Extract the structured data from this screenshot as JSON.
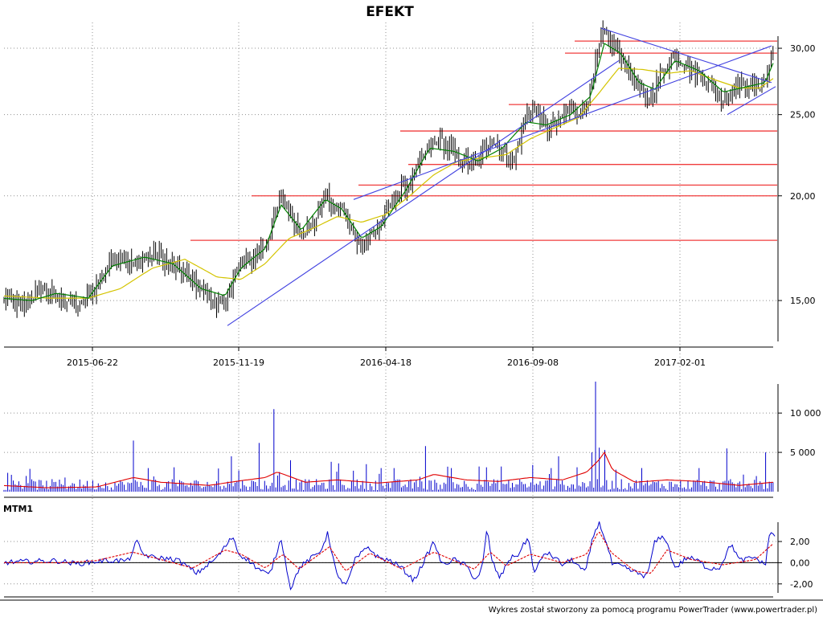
{
  "title": "EFEKT",
  "footer": "Wykres został stworzony za pomocą programu PowerTrader (www.powertrader.pl)",
  "colors": {
    "candle": "#000000",
    "ma_short": "#008000",
    "ma_long": "#d4c400",
    "channel": "#4040e0",
    "hline": "#f03c3c",
    "volume": "#0000cc",
    "volume_ma": "#e00000",
    "mtm": "#0000cc",
    "mtm_signal": "#e00000"
  },
  "chart_data": [
    {
      "type": "candlestick",
      "name": "price",
      "xticks": [
        "2015-06-22",
        "2015-11-19",
        "2016-04-18",
        "2016-09-08",
        "2017-02-01"
      ],
      "yticks": [
        "15,00",
        "20,00",
        "25,00",
        "30,00"
      ],
      "ylim": [
        13.2,
        32.2
      ],
      "yscale": "log",
      "close_anchors": [
        [
          0,
          15.1
        ],
        [
          12,
          15.0
        ],
        [
          25,
          14.8
        ],
        [
          35,
          14.9
        ],
        [
          50,
          15.6
        ],
        [
          60,
          15.3
        ],
        [
          70,
          15.2
        ],
        [
          85,
          15.0
        ],
        [
          100,
          14.8
        ],
        [
          115,
          15.3
        ],
        [
          125,
          16.0
        ],
        [
          140,
          16.8
        ],
        [
          150,
          17.0
        ],
        [
          165,
          16.5
        ],
        [
          180,
          16.9
        ],
        [
          195,
          17.0
        ],
        [
          215,
          16.5
        ],
        [
          235,
          16.0
        ],
        [
          250,
          15.5
        ],
        [
          265,
          15.0
        ],
        [
          280,
          14.8
        ],
        [
          290,
          16.0
        ],
        [
          300,
          16.7
        ],
        [
          315,
          16.9
        ],
        [
          330,
          17.5
        ],
        [
          340,
          18.5
        ],
        [
          350,
          20.0
        ],
        [
          362,
          19.0
        ],
        [
          375,
          18.0
        ],
        [
          392,
          18.6
        ],
        [
          405,
          20.2
        ],
        [
          415,
          19.2
        ],
        [
          425,
          19.5
        ],
        [
          438,
          18.0
        ],
        [
          450,
          17.5
        ],
        [
          462,
          18.0
        ],
        [
          475,
          18.5
        ],
        [
          490,
          20.0
        ],
        [
          505,
          20.5
        ],
        [
          520,
          21.5
        ],
        [
          535,
          23.0
        ],
        [
          550,
          23.2
        ],
        [
          565,
          22.5
        ],
        [
          580,
          22.0
        ],
        [
          595,
          21.8
        ],
        [
          610,
          23.5
        ],
        [
          625,
          22.5
        ],
        [
          640,
          22.0
        ],
        [
          655,
          25.0
        ],
        [
          665,
          25.5
        ],
        [
          680,
          24.0
        ],
        [
          695,
          24.5
        ],
        [
          710,
          25.5
        ],
        [
          725,
          25.0
        ],
        [
          735,
          26.5
        ],
        [
          745,
          30.0
        ],
        [
          752,
          31.5
        ],
        [
          760,
          30.5
        ],
        [
          772,
          29.5
        ],
        [
          785,
          28.0
        ],
        [
          795,
          27.0
        ],
        [
          805,
          25.8
        ],
        [
          815,
          27.0
        ],
        [
          828,
          28.5
        ],
        [
          840,
          29.5
        ],
        [
          855,
          28.5
        ],
        [
          870,
          28.0
        ],
        [
          885,
          27.0
        ],
        [
          900,
          26.2
        ],
        [
          915,
          27.0
        ],
        [
          930,
          27.2
        ],
        [
          945,
          27.0
        ],
        [
          952,
          27.5
        ],
        [
          962,
          29.5
        ]
      ],
      "ma_short_anchors": [
        [
          0,
          15.1
        ],
        [
          40,
          15.0
        ],
        [
          70,
          15.3
        ],
        [
          110,
          15.1
        ],
        [
          140,
          16.5
        ],
        [
          180,
          16.9
        ],
        [
          215,
          16.6
        ],
        [
          250,
          15.5
        ],
        [
          280,
          15.2
        ],
        [
          300,
          16.4
        ],
        [
          330,
          17.3
        ],
        [
          350,
          19.5
        ],
        [
          375,
          18.2
        ],
        [
          405,
          19.8
        ],
        [
          425,
          19.3
        ],
        [
          450,
          17.8
        ],
        [
          475,
          18.4
        ],
        [
          505,
          20.3
        ],
        [
          535,
          22.8
        ],
        [
          565,
          22.6
        ],
        [
          595,
          22.0
        ],
        [
          625,
          22.8
        ],
        [
          655,
          24.5
        ],
        [
          680,
          24.3
        ],
        [
          710,
          25.0
        ],
        [
          735,
          26.3
        ],
        [
          752,
          30.4
        ],
        [
          772,
          29.6
        ],
        [
          795,
          27.3
        ],
        [
          815,
          26.8
        ],
        [
          840,
          29.0
        ],
        [
          870,
          28.2
        ],
        [
          900,
          26.6
        ],
        [
          930,
          27.0
        ],
        [
          952,
          27.3
        ],
        [
          962,
          28.8
        ]
      ],
      "ma_long_anchors": [
        [
          0,
          15.2
        ],
        [
          60,
          15.1
        ],
        [
          110,
          15.1
        ],
        [
          150,
          15.5
        ],
        [
          190,
          16.4
        ],
        [
          230,
          16.8
        ],
        [
          270,
          16.0
        ],
        [
          300,
          15.9
        ],
        [
          330,
          16.6
        ],
        [
          360,
          17.8
        ],
        [
          390,
          18.3
        ],
        [
          420,
          18.9
        ],
        [
          450,
          18.6
        ],
        [
          480,
          19.0
        ],
        [
          510,
          20.0
        ],
        [
          540,
          21.2
        ],
        [
          570,
          22.0
        ],
        [
          600,
          22.2
        ],
        [
          630,
          22.4
        ],
        [
          660,
          23.4
        ],
        [
          690,
          24.1
        ],
        [
          720,
          24.8
        ],
        [
          745,
          26.5
        ],
        [
          770,
          28.4
        ],
        [
          800,
          28.3
        ],
        [
          830,
          28.0
        ],
        [
          860,
          28.2
        ],
        [
          890,
          27.5
        ],
        [
          920,
          26.9
        ],
        [
          945,
          26.9
        ],
        [
          962,
          27.6
        ]
      ],
      "channel_lines": [
        [
          [
            283,
            14.0
          ],
          [
            770,
            29.0
          ]
        ],
        [
          [
            440,
            19.8
          ],
          [
            960,
            30.2
          ]
        ],
        [
          [
            748,
            31.7
          ],
          [
            960,
            27.3
          ]
        ],
        [
          [
            905,
            25.0
          ],
          [
            965,
            27.0
          ]
        ]
      ],
      "horizontal_levels": [
        {
          "x0": 715,
          "y": 30.6
        },
        {
          "x0": 703,
          "y": 29.6
        },
        {
          "x0": 633,
          "y": 25.7
        },
        {
          "x0": 498,
          "y": 23.9
        },
        {
          "x0": 508,
          "y": 21.8
        },
        {
          "x0": 446,
          "y": 20.6
        },
        {
          "x0": 313,
          "y": 20.0
        },
        {
          "x0": 237,
          "y": 17.7
        }
      ]
    },
    {
      "type": "bar",
      "name": "volume",
      "yticks": [
        "5 000",
        "10 000"
      ],
      "ylim": [
        0,
        14000
      ],
      "spikes": [
        [
          32,
          2000
        ],
        [
          80,
          1800
        ],
        [
          166,
          6500
        ],
        [
          183,
          3000
        ],
        [
          217,
          3100
        ],
        [
          287,
          4500
        ],
        [
          297,
          2700
        ],
        [
          323,
          6200
        ],
        [
          340,
          10500
        ],
        [
          362,
          4000
        ],
        [
          412,
          3800
        ],
        [
          420,
          3600
        ],
        [
          455,
          3500
        ],
        [
          474,
          3000
        ],
        [
          490,
          3000
        ],
        [
          530,
          5800
        ],
        [
          561,
          3000
        ],
        [
          595,
          3200
        ],
        [
          605,
          3100
        ],
        [
          623,
          3200
        ],
        [
          663,
          3400
        ],
        [
          685,
          3000
        ],
        [
          694,
          4500
        ],
        [
          718,
          3100
        ],
        [
          735,
          5000
        ],
        [
          740,
          14000
        ],
        [
          746,
          5600
        ],
        [
          752,
          5300
        ],
        [
          767,
          2800
        ],
        [
          798,
          3000
        ],
        [
          870,
          3000
        ],
        [
          905,
          5500
        ],
        [
          953,
          5000
        ]
      ],
      "ma_anchors": [
        [
          0,
          800
        ],
        [
          60,
          500
        ],
        [
          120,
          600
        ],
        [
          166,
          1800
        ],
        [
          200,
          1200
        ],
        [
          260,
          800
        ],
        [
          300,
          1400
        ],
        [
          330,
          1800
        ],
        [
          345,
          2500
        ],
        [
          380,
          1200
        ],
        [
          420,
          1500
        ],
        [
          470,
          1100
        ],
        [
          520,
          1500
        ],
        [
          540,
          2200
        ],
        [
          580,
          1500
        ],
        [
          620,
          1300
        ],
        [
          660,
          1800
        ],
        [
          700,
          1500
        ],
        [
          730,
          2500
        ],
        [
          745,
          4000
        ],
        [
          752,
          5000
        ],
        [
          762,
          2800
        ],
        [
          790,
          1200
        ],
        [
          830,
          1500
        ],
        [
          870,
          1300
        ],
        [
          920,
          800
        ],
        [
          962,
          1200
        ]
      ]
    },
    {
      "type": "line",
      "name": "MTM1",
      "title": "MTM1",
      "yticks": [
        "-2,00",
        "0,00",
        "2,00"
      ],
      "ylim": [
        -3.0,
        4.2
      ],
      "mtm_anchors": [
        [
          0,
          0.0
        ],
        [
          30,
          0.1
        ],
        [
          70,
          0.2
        ],
        [
          95,
          -0.1
        ],
        [
          130,
          0.2
        ],
        [
          160,
          0.2
        ],
        [
          170,
          2.0
        ],
        [
          178,
          0.8
        ],
        [
          190,
          0.5
        ],
        [
          220,
          0.3
        ],
        [
          245,
          -1.0
        ],
        [
          270,
          0.5
        ],
        [
          290,
          2.5
        ],
        [
          297,
          0.8
        ],
        [
          305,
          0.5
        ],
        [
          320,
          -0.5
        ],
        [
          335,
          -1.2
        ],
        [
          350,
          2.3
        ],
        [
          356,
          -0.3
        ],
        [
          362,
          -2.5
        ],
        [
          372,
          -0.5
        ],
        [
          385,
          0.3
        ],
        [
          398,
          1.0
        ],
        [
          408,
          2.8
        ],
        [
          420,
          -1.5
        ],
        [
          432,
          -2.0
        ],
        [
          442,
          0.3
        ],
        [
          458,
          1.5
        ],
        [
          470,
          0.5
        ],
        [
          485,
          0.2
        ],
        [
          500,
          -0.5
        ],
        [
          515,
          -1.7
        ],
        [
          530,
          0.5
        ],
        [
          540,
          2.0
        ],
        [
          550,
          -0.2
        ],
        [
          565,
          0.3
        ],
        [
          580,
          -0.3
        ],
        [
          592,
          -1.6
        ],
        [
          600,
          -0.5
        ],
        [
          606,
          3.2
        ],
        [
          612,
          0.2
        ],
        [
          622,
          -1.5
        ],
        [
          633,
          0.3
        ],
        [
          645,
          0.8
        ],
        [
          657,
          2.4
        ],
        [
          665,
          -1.0
        ],
        [
          678,
          1.0
        ],
        [
          690,
          0.5
        ],
        [
          700,
          -0.2
        ],
        [
          712,
          0.3
        ],
        [
          728,
          -1.0
        ],
        [
          738,
          2.5
        ],
        [
          745,
          3.8
        ],
        [
          752,
          2.5
        ],
        [
          762,
          -0.2
        ],
        [
          772,
          -0.3
        ],
        [
          790,
          -0.9
        ],
        [
          805,
          -1.3
        ],
        [
          815,
          2.0
        ],
        [
          827,
          2.5
        ],
        [
          840,
          -0.5
        ],
        [
          855,
          0.5
        ],
        [
          868,
          0.2
        ],
        [
          880,
          -0.5
        ],
        [
          895,
          -0.5
        ],
        [
          910,
          1.8
        ],
        [
          920,
          0.2
        ],
        [
          940,
          0.5
        ],
        [
          952,
          -0.3
        ],
        [
          958,
          3.0
        ],
        [
          965,
          2.5
        ]
      ],
      "signal_anchors": [
        [
          0,
          0.0
        ],
        [
          40,
          0.0
        ],
        [
          80,
          0.0
        ],
        [
          120,
          0.2
        ],
        [
          165,
          1.0
        ],
        [
          190,
          0.5
        ],
        [
          240,
          -0.5
        ],
        [
          280,
          1.2
        ],
        [
          300,
          0.8
        ],
        [
          330,
          -0.5
        ],
        [
          352,
          0.8
        ],
        [
          372,
          -0.6
        ],
        [
          410,
          1.5
        ],
        [
          430,
          -0.8
        ],
        [
          460,
          0.9
        ],
        [
          500,
          -0.6
        ],
        [
          540,
          1.0
        ],
        [
          590,
          -0.6
        ],
        [
          610,
          1.0
        ],
        [
          630,
          -0.3
        ],
        [
          660,
          0.8
        ],
        [
          700,
          0.0
        ],
        [
          730,
          0.8
        ],
        [
          745,
          3.0
        ],
        [
          760,
          1.0
        ],
        [
          790,
          -0.8
        ],
        [
          810,
          -1.0
        ],
        [
          830,
          1.2
        ],
        [
          860,
          0.3
        ],
        [
          900,
          -0.2
        ],
        [
          940,
          0.3
        ],
        [
          962,
          1.8
        ]
      ]
    }
  ]
}
